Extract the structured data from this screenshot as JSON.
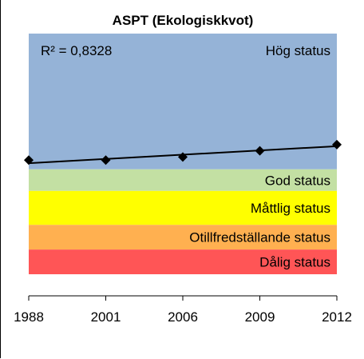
{
  "chart_data": {
    "type": "scatter",
    "title": "ASPT (Ekologiskkvot)",
    "xlabel": "",
    "ylabel": "",
    "categories": [
      "1988",
      "2001",
      "2006",
      "2009",
      "2012"
    ],
    "series": [
      {
        "values": [
          0.99,
          0.99,
          1.0,
          1.02,
          1.04
        ]
      }
    ],
    "trendline": {
      "type": "linear",
      "r_squared_label": "R² = 0,8328",
      "start": 0.98,
      "end": 1.035
    },
    "ylim": [
      0.55,
      1.4
    ],
    "status_bands": [
      {
        "label": "Hög status",
        "from": 0.96,
        "to": 1.4,
        "color": "#95B3D7"
      },
      {
        "label": "God status",
        "from": 0.89,
        "to": 0.96,
        "color": "#C3E0A3"
      },
      {
        "label": "Måttlig status",
        "from": 0.78,
        "to": 0.89,
        "color": "#FFFF00"
      },
      {
        "label": "Otillfredställande status",
        "from": 0.7,
        "to": 0.78,
        "color": "#FFB050"
      },
      {
        "label": "Dålig status",
        "from": 0.62,
        "to": 0.7,
        "color": "#FF5556"
      }
    ],
    "marker_color": "#000000",
    "trendline_color": "#000000"
  }
}
